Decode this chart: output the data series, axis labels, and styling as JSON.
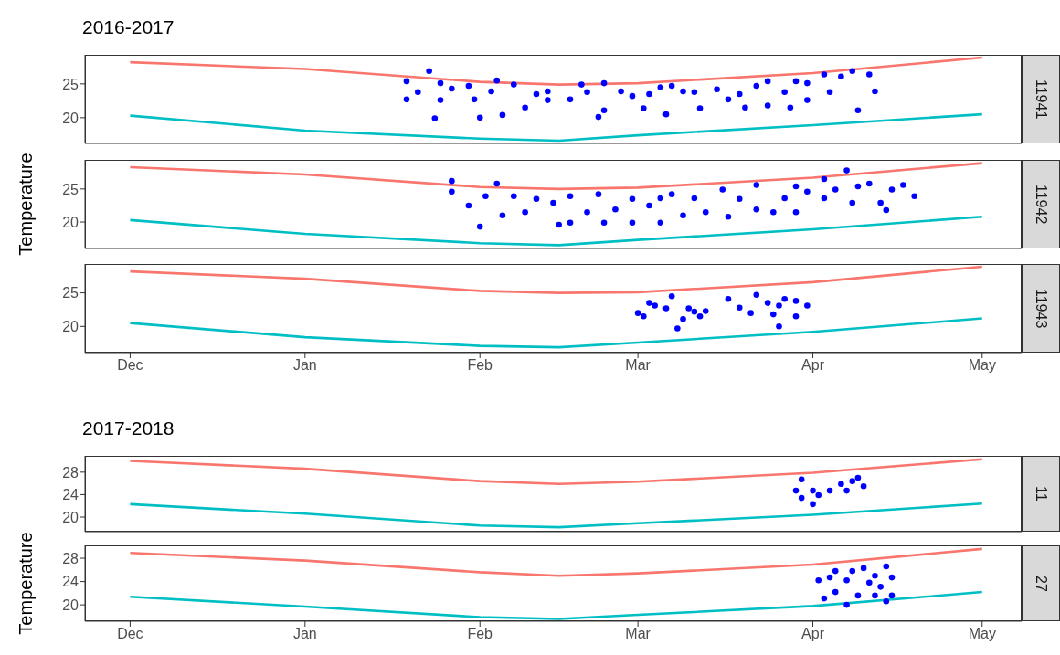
{
  "chart_data": [
    {
      "type": "scatter",
      "title": "2016-2017",
      "annotations": [
        "11941"
      ],
      "tick_labels": "y",
      "xlim": [
        "2016-11-23",
        "2017-05-08"
      ],
      "xticks": [
        {
          "value": "2016-12-01",
          "label": null
        },
        {
          "value": "2017-01-01",
          "label": null
        },
        {
          "value": "2017-02-01",
          "label": null
        },
        {
          "value": "2017-03-01",
          "label": null
        },
        {
          "value": "2017-04-01",
          "label": null
        },
        {
          "value": "2017-05-01",
          "label": null
        }
      ],
      "ylim": [
        16.2,
        29.3
      ],
      "yticks": [
        20,
        25
      ],
      "series": [
        {
          "type": "line",
          "color": "#f8766d",
          "marker": "none",
          "x": [
            "2016-12-01",
            "2017-01-01",
            "2017-02-01",
            "2017-02-15",
            "2017-03-01",
            "2017-04-01",
            "2017-05-01"
          ],
          "values": [
            28.2,
            27.2,
            25.3,
            24.9,
            25.1,
            26.6,
            28.9
          ]
        },
        {
          "type": "line",
          "color": "#00bfc4",
          "marker": "none",
          "x": [
            "2016-12-01",
            "2017-01-01",
            "2017-02-01",
            "2017-02-15",
            "2017-03-01",
            "2017-04-01",
            "2017-05-01"
          ],
          "values": [
            20.3,
            18.1,
            16.9,
            16.6,
            17.4,
            18.9,
            20.5
          ]
        },
        {
          "type": "scatter",
          "color": "#0000ff",
          "marker": "circle",
          "x": [
            "2017-01-19",
            "2017-01-19",
            "2017-01-21",
            "2017-01-23",
            "2017-01-24",
            "2017-01-25",
            "2017-01-25",
            "2017-01-27",
            "2017-01-30",
            "2017-01-31",
            "2017-02-01",
            "2017-02-04",
            "2017-02-03",
            "2017-02-05",
            "2017-02-07",
            "2017-02-09",
            "2017-02-11",
            "2017-02-13",
            "2017-02-13",
            "2017-02-17",
            "2017-02-19",
            "2017-02-20",
            "2017-02-22",
            "2017-02-23",
            "2017-02-23",
            "2017-02-26",
            "2017-02-28",
            "2017-03-02",
            "2017-03-03",
            "2017-03-05",
            "2017-03-06",
            "2017-03-07",
            "2017-03-09",
            "2017-03-11",
            "2017-03-12",
            "2017-03-15",
            "2017-03-17",
            "2017-03-19",
            "2017-03-20",
            "2017-03-22",
            "2017-03-24",
            "2017-03-24",
            "2017-03-27",
            "2017-03-28",
            "2017-03-29",
            "2017-03-31",
            "2017-03-31",
            "2017-04-03",
            "2017-04-04",
            "2017-04-06",
            "2017-04-08",
            "2017-04-09",
            "2017-04-11",
            "2017-04-12"
          ],
          "values": [
            25.4,
            22.7,
            23.8,
            26.9,
            19.9,
            25.1,
            22.6,
            24.3,
            24.7,
            22.7,
            20,
            25.5,
            23.9,
            20.4,
            24.9,
            21.5,
            23.5,
            23.9,
            22.6,
            22.7,
            24.9,
            23.8,
            20.1,
            25.1,
            21.1,
            23.9,
            23.2,
            21.4,
            23.5,
            24.5,
            20.5,
            24.7,
            23.9,
            23.8,
            21.4,
            24.2,
            22.7,
            23.5,
            21.5,
            24.7,
            25.4,
            21.8,
            23.8,
            21.5,
            25.4,
            25.1,
            22.6,
            26.4,
            23.8,
            26.1,
            26.9,
            21.1,
            26.4,
            23.9
          ]
        }
      ]
    },
    {
      "type": "scatter",
      "ylabel": "Temperature",
      "annotations": [
        "11942"
      ],
      "tick_labels": "y",
      "xlim": [
        "2016-11-23",
        "2017-05-08"
      ],
      "xticks": [
        {
          "value": "2016-12-01",
          "label": null
        },
        {
          "value": "2017-01-01",
          "label": null
        },
        {
          "value": "2017-02-01",
          "label": null
        },
        {
          "value": "2017-03-01",
          "label": null
        },
        {
          "value": "2017-04-01",
          "label": null
        },
        {
          "value": "2017-05-01",
          "label": null
        }
      ],
      "ylim": [
        16,
        29.4
      ],
      "yticks": [
        20,
        25
      ],
      "series": [
        {
          "type": "line",
          "color": "#f8766d",
          "marker": "none",
          "x": [
            "2016-12-01",
            "2017-01-01",
            "2017-02-01",
            "2017-02-15",
            "2017-03-01",
            "2017-04-01",
            "2017-05-01"
          ],
          "values": [
            28.3,
            27.2,
            25.3,
            25,
            25.2,
            26.7,
            28.9
          ]
        },
        {
          "type": "line",
          "color": "#00bfc4",
          "marker": "none",
          "x": [
            "2016-12-01",
            "2017-01-01",
            "2017-02-01",
            "2017-02-15",
            "2017-03-01",
            "2017-04-01",
            "2017-05-01"
          ],
          "values": [
            20.3,
            18.2,
            16.8,
            16.5,
            17.3,
            18.9,
            20.8
          ]
        },
        {
          "type": "scatter",
          "color": "#0000ff",
          "marker": "circle",
          "x": [
            "2017-01-27",
            "2017-01-27",
            "2017-01-30",
            "2017-02-01",
            "2017-02-02",
            "2017-02-04",
            "2017-02-05",
            "2017-02-07",
            "2017-02-09",
            "2017-02-11",
            "2017-02-15",
            "2017-02-14",
            "2017-02-17",
            "2017-02-17",
            "2017-02-20",
            "2017-02-22",
            "2017-02-23",
            "2017-02-25",
            "2017-02-28",
            "2017-02-28",
            "2017-03-03",
            "2017-03-05",
            "2017-03-05",
            "2017-03-07",
            "2017-03-09",
            "2017-03-11",
            "2017-03-13",
            "2017-03-16",
            "2017-03-17",
            "2017-03-19",
            "2017-03-22",
            "2017-03-22",
            "2017-03-25",
            "2017-03-27",
            "2017-03-29",
            "2017-03-29",
            "2017-03-31",
            "2017-04-03",
            "2017-04-03",
            "2017-04-05",
            "2017-04-07",
            "2017-04-08",
            "2017-04-09",
            "2017-04-11",
            "2017-04-13",
            "2017-04-14",
            "2017-04-15",
            "2017-04-17",
            "2017-04-19"
          ],
          "values": [
            26.2,
            24.6,
            22.5,
            19.3,
            23.9,
            25.8,
            21,
            23.9,
            21.5,
            23.5,
            19.6,
            22.9,
            23.9,
            19.9,
            21.5,
            24.2,
            19.9,
            21.9,
            23.5,
            19.9,
            22.5,
            19.9,
            23.6,
            24.2,
            21,
            23.6,
            21.5,
            24.9,
            20.8,
            23.5,
            25.6,
            21.9,
            21.5,
            23.6,
            21.5,
            25.4,
            24.6,
            26.5,
            23.6,
            24.9,
            27.8,
            22.9,
            25.4,
            25.8,
            22.9,
            21.8,
            24.9,
            25.6,
            23.9
          ]
        }
      ]
    },
    {
      "type": "scatter",
      "annotations": [
        "11943"
      ],
      "xlim": [
        "2016-11-23",
        "2017-05-08"
      ],
      "xticks": [
        {
          "value": "2016-12-01",
          "label": "Dec"
        },
        {
          "value": "2017-01-01",
          "label": "Jan"
        },
        {
          "value": "2017-02-01",
          "label": "Feb"
        },
        {
          "value": "2017-03-01",
          "label": "Mar"
        },
        {
          "value": "2017-04-01",
          "label": "Apr"
        },
        {
          "value": "2017-05-01",
          "label": "May"
        }
      ],
      "ylim": [
        16.1,
        29.3
      ],
      "yticks": [
        20,
        25
      ],
      "series": [
        {
          "type": "line",
          "color": "#f8766d",
          "marker": "none",
          "x": [
            "2016-12-01",
            "2017-01-01",
            "2017-02-01",
            "2017-02-15",
            "2017-03-01",
            "2017-04-01",
            "2017-05-01"
          ],
          "values": [
            28.2,
            27.1,
            25.3,
            25,
            25.1,
            26.6,
            28.9
          ]
        },
        {
          "type": "line",
          "color": "#00bfc4",
          "marker": "none",
          "x": [
            "2016-12-01",
            "2017-01-01",
            "2017-02-01",
            "2017-02-15",
            "2017-03-01",
            "2017-04-01",
            "2017-05-01"
          ],
          "values": [
            20.5,
            18.4,
            17.1,
            16.9,
            17.6,
            19.2,
            21.2
          ]
        },
        {
          "type": "scatter",
          "color": "#0000ff",
          "marker": "circle",
          "x": [
            "2017-03-01",
            "2017-03-02",
            "2017-03-03",
            "2017-03-04",
            "2017-03-07",
            "2017-03-06",
            "2017-03-08",
            "2017-03-09",
            "2017-03-10",
            "2017-03-11",
            "2017-03-12",
            "2017-03-13",
            "2017-03-17",
            "2017-03-19",
            "2017-03-21",
            "2017-03-22",
            "2017-03-24",
            "2017-03-25",
            "2017-03-26",
            "2017-03-26",
            "2017-03-27",
            "2017-03-29",
            "2017-03-29",
            "2017-03-31"
          ],
          "values": [
            22,
            21.5,
            23.5,
            23.1,
            24.5,
            22.7,
            19.7,
            21.1,
            22.7,
            22.2,
            21.5,
            22.3,
            24.1,
            22.8,
            22,
            24.7,
            23.5,
            21.8,
            20,
            23.1,
            24.1,
            21.5,
            23.8,
            23.1
          ]
        }
      ]
    },
    {
      "type": "scatter",
      "title": "2017-2018",
      "annotations": [
        "11"
      ],
      "tick_labels": "y",
      "xlim": [
        "2017-11-23",
        "2018-05-08"
      ],
      "xticks": [
        {
          "value": "2017-12-01",
          "label": null
        },
        {
          "value": "2018-01-01",
          "label": null
        },
        {
          "value": "2018-02-01",
          "label": null
        },
        {
          "value": "2018-03-01",
          "label": null
        },
        {
          "value": "2018-04-01",
          "label": null
        },
        {
          "value": "2018-05-01",
          "label": null
        }
      ],
      "ylim": [
        17.4,
        30.9
      ],
      "yticks": [
        20,
        24,
        28
      ],
      "series": [
        {
          "type": "line",
          "color": "#f8766d",
          "marker": "none",
          "x": [
            "2017-12-01",
            "2018-01-01",
            "2018-02-01",
            "2018-02-15",
            "2018-03-01",
            "2018-04-01",
            "2018-05-01"
          ],
          "values": [
            30,
            28.6,
            26.4,
            25.9,
            26.3,
            27.9,
            30.3
          ]
        },
        {
          "type": "line",
          "color": "#00bfc4",
          "marker": "none",
          "x": [
            "2017-12-01",
            "2018-01-01",
            "2018-02-01",
            "2018-02-15",
            "2018-03-01",
            "2018-04-01",
            "2018-05-01"
          ],
          "values": [
            22.3,
            20.6,
            18.5,
            18.2,
            18.9,
            20.4,
            22.4
          ]
        },
        {
          "type": "scatter",
          "color": "#0000ff",
          "marker": "circle",
          "x": [
            "2018-03-30",
            "2018-03-29",
            "2018-03-30",
            "2018-04-01",
            "2018-04-01",
            "2018-04-02",
            "2018-04-04",
            "2018-04-06",
            "2018-04-07",
            "2018-04-08",
            "2018-04-09",
            "2018-04-10"
          ],
          "values": [
            26.7,
            24.7,
            23.4,
            22.3,
            24.7,
            23.9,
            24.7,
            25.9,
            24.7,
            26.4,
            27,
            25.5
          ]
        }
      ]
    },
    {
      "type": "scatter",
      "ylabel": "Temperature",
      "annotations": [
        "27"
      ],
      "xlim": [
        "2017-11-23",
        "2018-05-08"
      ],
      "xticks": [
        {
          "value": "2017-12-01",
          "label": "Dec"
        },
        {
          "value": "2018-01-01",
          "label": "Jan"
        },
        {
          "value": "2018-02-01",
          "label": "Feb"
        },
        {
          "value": "2018-03-01",
          "label": "Mar"
        },
        {
          "value": "2018-04-01",
          "label": "Apr"
        },
        {
          "value": "2018-05-01",
          "label": "May"
        }
      ],
      "ylim": [
        17.2,
        30.2
      ],
      "yticks": [
        20,
        24,
        28
      ],
      "series": [
        {
          "type": "line",
          "color": "#f8766d",
          "marker": "none",
          "x": [
            "2017-12-01",
            "2018-01-01",
            "2018-02-01",
            "2018-02-15",
            "2018-03-01",
            "2018-04-01",
            "2018-05-01"
          ],
          "values": [
            28.9,
            27.6,
            25.6,
            25,
            25.4,
            26.9,
            29.6
          ]
        },
        {
          "type": "line",
          "color": "#00bfc4",
          "marker": "none",
          "x": [
            "2017-12-01",
            "2018-01-01",
            "2018-02-01",
            "2018-02-15",
            "2018-03-01",
            "2018-04-01",
            "2018-05-01"
          ],
          "values": [
            21.4,
            19.7,
            17.9,
            17.6,
            18.3,
            19.8,
            22.2
          ]
        },
        {
          "type": "scatter",
          "color": "#0000ff",
          "marker": "circle",
          "x": [
            "2018-04-02",
            "2018-04-03",
            "2018-04-04",
            "2018-04-05",
            "2018-04-05",
            "2018-04-07",
            "2018-04-07",
            "2018-04-08",
            "2018-04-09",
            "2018-04-10",
            "2018-04-11",
            "2018-04-12",
            "2018-04-12",
            "2018-04-13",
            "2018-04-14",
            "2018-04-15",
            "2018-04-15",
            "2018-04-14"
          ],
          "values": [
            24.2,
            21.1,
            24.7,
            25.8,
            22.2,
            24.2,
            20,
            25.8,
            21.6,
            26.3,
            23.8,
            21.6,
            25,
            23.1,
            26.6,
            21.6,
            24.7,
            20.6
          ]
        }
      ]
    }
  ]
}
